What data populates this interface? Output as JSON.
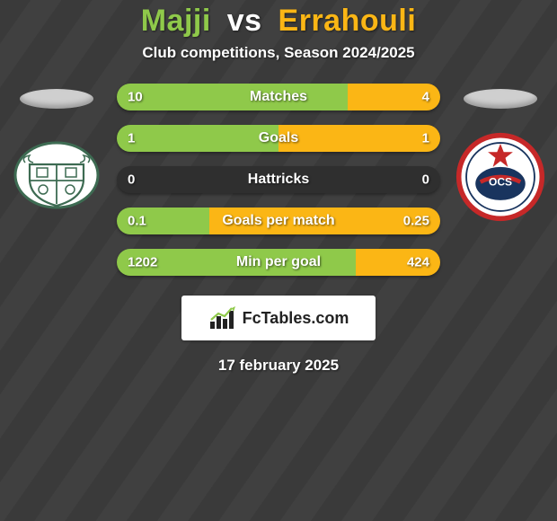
{
  "colors": {
    "player1": "#8fc94a",
    "player2": "#fbb615",
    "bar_empty": "#2f2f2f",
    "title_p1": "#8fc94a",
    "title_vs": "#ffffff",
    "title_p2": "#fbb615",
    "background": "#3c3c3c",
    "text": "#ffffff"
  },
  "header": {
    "player1": "Majji",
    "vs": "vs",
    "player2": "Errahouli",
    "subtitle": "Club competitions, Season 2024/2025"
  },
  "stats": [
    {
      "label": "Matches",
      "left_val": "10",
      "right_val": "4",
      "left_pct": 71.4,
      "right_pct": 28.6
    },
    {
      "label": "Goals",
      "left_val": "1",
      "right_val": "1",
      "left_pct": 50.0,
      "right_pct": 50.0
    },
    {
      "label": "Hattricks",
      "left_val": "0",
      "right_val": "0",
      "left_pct": 0.0,
      "right_pct": 0.0
    },
    {
      "label": "Goals per match",
      "left_val": "0.1",
      "right_val": "0.25",
      "left_pct": 28.6,
      "right_pct": 71.4
    },
    {
      "label": "Min per goal",
      "left_val": "1202",
      "right_val": "424",
      "left_pct": 73.9,
      "right_pct": 26.1
    }
  ],
  "footer": {
    "brand": "FcTables.com",
    "date": "17 february 2025"
  },
  "badges": {
    "left": {
      "bg": "#ffffff",
      "stroke": "#3d6b52"
    },
    "right": {
      "bg": "#ffffff",
      "ring": "#c62828",
      "inner": "#19345e",
      "star": "#c62828",
      "text": "OCS"
    }
  }
}
